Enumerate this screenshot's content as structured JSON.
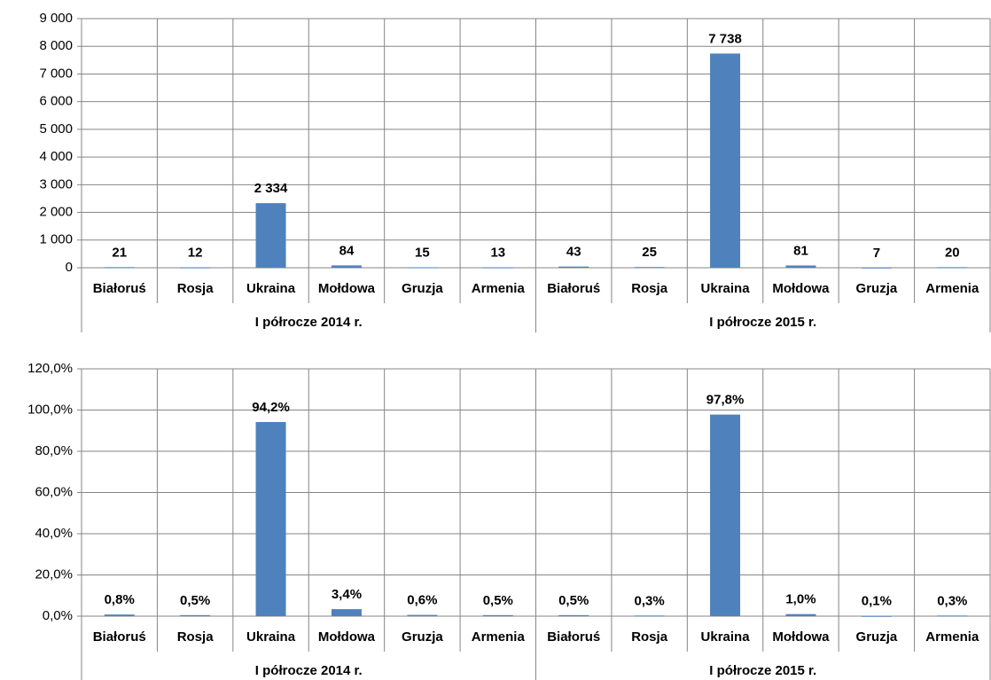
{
  "chart_data": [
    {
      "type": "bar",
      "categories": [
        "Białoruś",
        "Rosja",
        "Ukraina",
        "Mołdowa",
        "Gruzja",
        "Armenia",
        "Białoruś",
        "Rosja",
        "Ukraina",
        "Mołdowa",
        "Gruzja",
        "Armenia"
      ],
      "group_labels": [
        "I półrocze 2014 r.",
        "I półrocze 2015 r."
      ],
      "values": [
        21,
        12,
        2334,
        84,
        15,
        13,
        43,
        25,
        7738,
        81,
        7,
        20
      ],
      "value_labels": [
        "21",
        "12",
        "2 334",
        "84",
        "15",
        "13",
        "43",
        "25",
        "7 738",
        "81",
        "7",
        "20"
      ],
      "color": "#4f81bd",
      "ylim": [
        0,
        9000
      ],
      "yticks": [
        0,
        {
          "value": 1000,
          "label": "1 000"
        },
        {
          "value": 2000,
          "label": "2 000"
        },
        {
          "value": 3000,
          "label": "3 000"
        },
        {
          "value": 4000,
          "label": "4 000"
        },
        {
          "value": 5000,
          "label": "5 000"
        },
        {
          "value": 6000,
          "label": "6 000"
        },
        {
          "value": 7000,
          "label": "7 000"
        },
        {
          "value": 8000,
          "label": "8 000"
        },
        {
          "value": 9000,
          "label": "9 000"
        }
      ],
      "grid": true
    },
    {
      "type": "bar",
      "categories": [
        "Białoruś",
        "Rosja",
        "Ukraina",
        "Mołdowa",
        "Gruzja",
        "Armenia",
        "Białoruś",
        "Rosja",
        "Ukraina",
        "Mołdowa",
        "Gruzja",
        "Armenia"
      ],
      "group_labels": [
        "I półrocze 2014 r.",
        "I półrocze 2015 r."
      ],
      "values": [
        0.8,
        0.5,
        94.2,
        3.4,
        0.6,
        0.5,
        0.5,
        0.3,
        97.8,
        1.0,
        0.1,
        0.3
      ],
      "value_labels": [
        "0,8%",
        "0,5%",
        "94,2%",
        "3,4%",
        "0,6%",
        "0,5%",
        "0,5%",
        "0,3%",
        "97,8%",
        "1,0%",
        "0,1%",
        "0,3%"
      ],
      "color": "#4f81bd",
      "ylim": [
        0,
        120
      ],
      "yticks": [
        {
          "value": 0,
          "label": "0,0%"
        },
        {
          "value": 20,
          "label": "20,0%"
        },
        {
          "value": 40,
          "label": "40,0%"
        },
        {
          "value": 60,
          "label": "60,0%"
        },
        {
          "value": 80,
          "label": "80,0%"
        },
        {
          "value": 100,
          "label": "100,0%"
        },
        {
          "value": 120,
          "label": "120,0%"
        }
      ],
      "grid": true
    }
  ]
}
